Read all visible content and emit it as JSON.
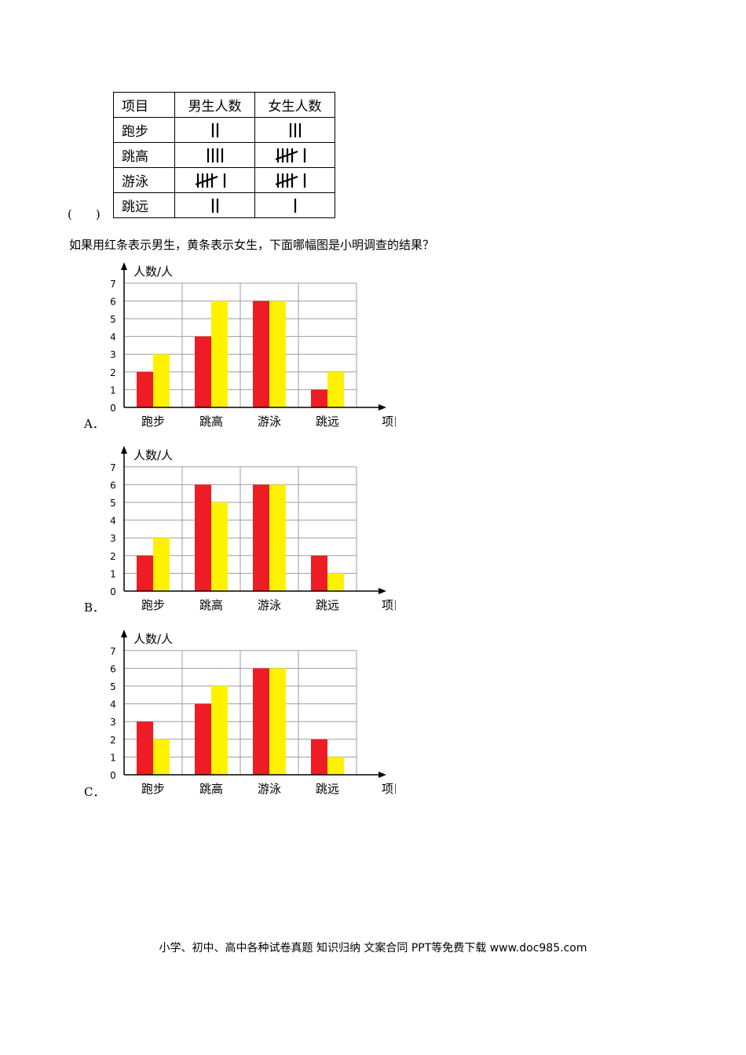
{
  "paren": "(　　)",
  "table": {
    "headers": [
      "项目",
      "男生人数",
      "女生人数"
    ],
    "rows": [
      {
        "item": "跑步",
        "boys": 2,
        "girls": 3
      },
      {
        "item": "跳高",
        "boys": 4,
        "girls": 6
      },
      {
        "item": "游泳",
        "boys": 6,
        "girls": 6
      },
      {
        "item": "跳远",
        "boys": 2,
        "girls": 1
      }
    ]
  },
  "question": "如果用红条表示男生，黄条表示女生，下面哪幅图是小明调查的结果？",
  "colors": {
    "boys": "#ee1c25",
    "girls": "#fff200",
    "grid": "#9e9e9e"
  },
  "chart_data": [
    {
      "type": "bar",
      "label": "A．",
      "ylabel": "人数/人",
      "xlabel": "项目",
      "categories": [
        "跑步",
        "跳高",
        "游泳",
        "跳远"
      ],
      "ylim": [
        0,
        7
      ],
      "yticks": [
        0,
        1,
        2,
        3,
        4,
        5,
        6,
        7
      ],
      "series": [
        {
          "values": [
            2,
            4,
            6,
            1
          ]
        },
        {
          "values": [
            3,
            6,
            6,
            2
          ]
        }
      ]
    },
    {
      "type": "bar",
      "label": "B．",
      "ylabel": "人数/人",
      "xlabel": "项目",
      "categories": [
        "跑步",
        "跳高",
        "游泳",
        "跳远"
      ],
      "ylim": [
        0,
        7
      ],
      "yticks": [
        0,
        1,
        2,
        3,
        4,
        5,
        6,
        7
      ],
      "series": [
        {
          "values": [
            2,
            6,
            6,
            2
          ]
        },
        {
          "values": [
            3,
            5,
            6,
            1
          ]
        }
      ]
    },
    {
      "type": "bar",
      "label": "C．",
      "ylabel": "人数/人",
      "xlabel": "项目",
      "categories": [
        "跑步",
        "跳高",
        "游泳",
        "跳远"
      ],
      "ylim": [
        0,
        7
      ],
      "yticks": [
        0,
        1,
        2,
        3,
        4,
        5,
        6,
        7
      ],
      "series": [
        {
          "values": [
            3,
            4,
            6,
            2
          ]
        },
        {
          "values": [
            2,
            5,
            6,
            1
          ]
        }
      ]
    }
  ],
  "footer": "小学、初中、高中各种试卷真题 知识归纳 文案合同 PPT等免费下载   www.doc985.com"
}
